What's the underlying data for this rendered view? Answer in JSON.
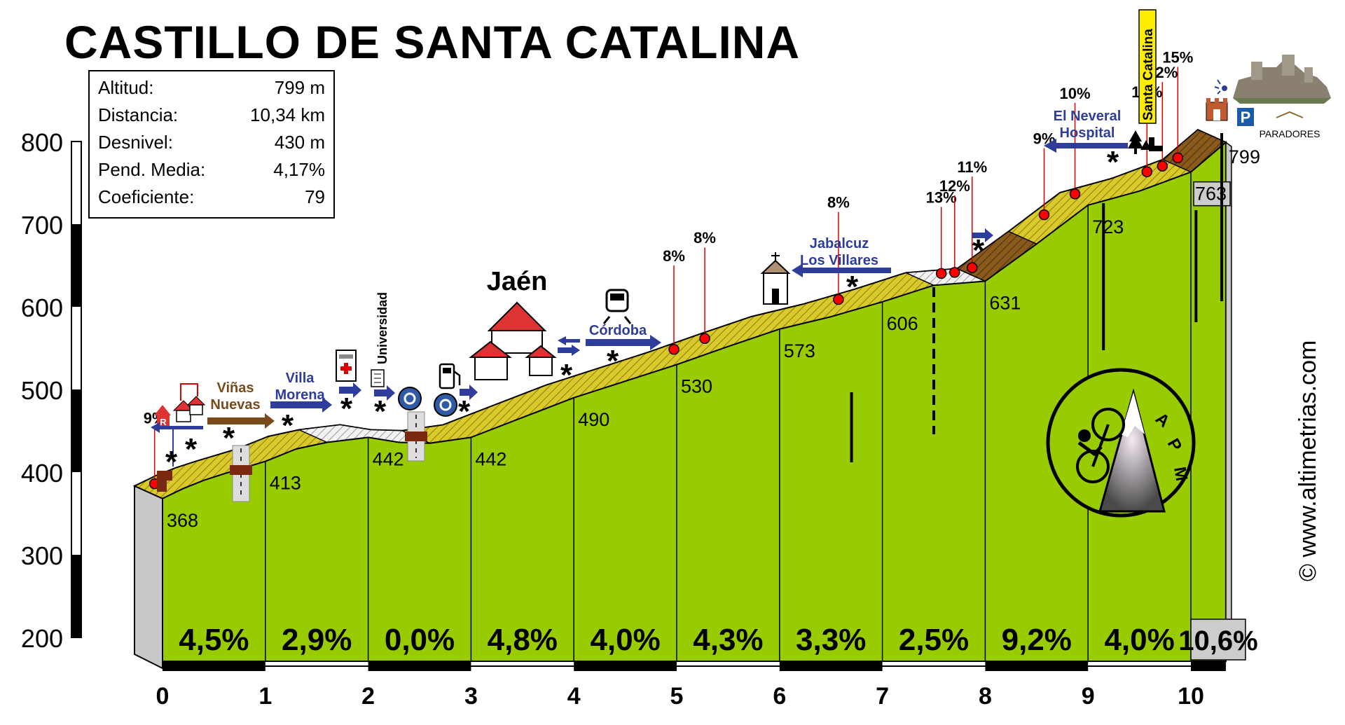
{
  "title": "CASTILLO DE SANTA CATALINA",
  "stats": [
    {
      "label": "Altitud:",
      "value": "799 m"
    },
    {
      "label": "Distancia:",
      "value": "10,34 km"
    },
    {
      "label": "Desnivel:",
      "value": "430 m"
    },
    {
      "label": "Pend. Media:",
      "value": "4,17%"
    },
    {
      "label": "Coeficiente:",
      "value": "79"
    }
  ],
  "watermark": "© www.altimetrias.com",
  "logo_letters": [
    "A",
    "P",
    "M"
  ],
  "colors": {
    "profile_fill": "#99cc00",
    "slope_band": "#d9c92a",
    "steep_band": "#8a5a1c",
    "flat_band": "#eeeeee",
    "side_gray": "#c8c8c8",
    "marker_red": "#ff0000",
    "label_blue": "#2e3d99",
    "label_brown": "#7a4a1a",
    "city_red": "#dd3333"
  },
  "chart_data": {
    "type": "area",
    "title": "CASTILLO DE SANTA CATALINA",
    "xlabel": "",
    "ylabel": "",
    "xlim": [
      0,
      10.34
    ],
    "ylim": [
      200,
      800
    ],
    "x_ticks": [
      "0",
      "1",
      "2",
      "3",
      "4",
      "5",
      "6",
      "7",
      "8",
      "9",
      "10"
    ],
    "y_ticks": [
      "200",
      "300",
      "400",
      "500",
      "600",
      "700",
      "800"
    ],
    "km_altitudes": [
      {
        "km": 0,
        "label": "368"
      },
      {
        "km": 1,
        "label": "413"
      },
      {
        "km": 2,
        "label": "442"
      },
      {
        "km": 3,
        "label": "442"
      },
      {
        "km": 4,
        "label": "490"
      },
      {
        "km": 5,
        "label": "530"
      },
      {
        "km": 6,
        "label": "573"
      },
      {
        "km": 7,
        "label": "606"
      },
      {
        "km": 8,
        "label": "631"
      },
      {
        "km": 9,
        "label": "723"
      },
      {
        "km": 10,
        "label": "763"
      },
      {
        "km": 10.34,
        "label": "799"
      }
    ],
    "segment_gradients": [
      "4,5%",
      "2,9%",
      "0,0%",
      "4,8%",
      "4,0%",
      "4,3%",
      "3,3%",
      "2,5%",
      "9,2%",
      "4,0%",
      "10,6%"
    ],
    "profile": [
      {
        "x": 0,
        "y": 368
      },
      {
        "x": 0.2,
        "y": 380
      },
      {
        "x": 0.4,
        "y": 390
      },
      {
        "x": 0.6,
        "y": 398
      },
      {
        "x": 1.0,
        "y": 413
      },
      {
        "x": 1.3,
        "y": 428
      },
      {
        "x": 1.6,
        "y": 436
      },
      {
        "x": 2.0,
        "y": 442
      },
      {
        "x": 2.3,
        "y": 436
      },
      {
        "x": 2.6,
        "y": 435
      },
      {
        "x": 3.0,
        "y": 442
      },
      {
        "x": 3.5,
        "y": 466
      },
      {
        "x": 4.0,
        "y": 490
      },
      {
        "x": 4.5,
        "y": 510
      },
      {
        "x": 5.0,
        "y": 530
      },
      {
        "x": 5.5,
        "y": 552
      },
      {
        "x": 6.0,
        "y": 573
      },
      {
        "x": 6.5,
        "y": 588
      },
      {
        "x": 7.0,
        "y": 606
      },
      {
        "x": 7.5,
        "y": 626
      },
      {
        "x": 8.0,
        "y": 631
      },
      {
        "x": 8.5,
        "y": 676
      },
      {
        "x": 9.0,
        "y": 723
      },
      {
        "x": 9.5,
        "y": 740
      },
      {
        "x": 10.0,
        "y": 763
      },
      {
        "x": 10.34,
        "y": 799
      }
    ],
    "ramp_labels": [
      {
        "km": 0.1,
        "label": "9%"
      },
      {
        "km": 5.15,
        "label": "8%"
      },
      {
        "km": 5.45,
        "label": "8%"
      },
      {
        "km": 6.75,
        "label": "8%"
      },
      {
        "km": 7.75,
        "label": "13%"
      },
      {
        "km": 7.88,
        "label": "12%"
      },
      {
        "km": 8.05,
        "label": "11%"
      },
      {
        "km": 8.75,
        "label": "9%"
      },
      {
        "km": 9.05,
        "label": "10%"
      },
      {
        "km": 9.75,
        "label": "10%"
      },
      {
        "km": 9.9,
        "label": "12%"
      },
      {
        "km": 10.05,
        "label": "15%"
      }
    ],
    "place_labels": {
      "vinas": [
        "Viñas",
        "Nuevas"
      ],
      "villa": [
        "Villa",
        "Morena"
      ],
      "universidad": "Universidad",
      "jaen": "Jaén",
      "cordoba": "Córdoba",
      "jabalcuz": [
        "Jabalcuz",
        "Los Villares"
      ],
      "neveral": [
        "El Neveral",
        "Hospital"
      ],
      "santa_catalina": "Santa Catalina",
      "paradores": "PARADORES"
    }
  }
}
